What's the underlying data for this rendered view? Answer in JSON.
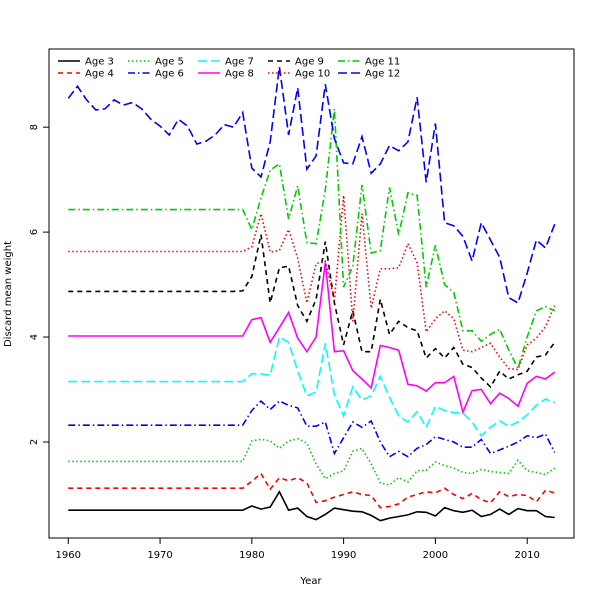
{
  "chart_data": {
    "type": "line",
    "title": "",
    "xlabel": "Year",
    "ylabel": "Discard mean weight",
    "xlim": [
      1957.9,
      2015.1
    ],
    "ylim": [
      0.17,
      9.49
    ],
    "xticks": [
      1960,
      1970,
      1980,
      1990,
      2000,
      2010
    ],
    "yticks": [
      2,
      4,
      6,
      8
    ],
    "grid": false,
    "legend_position": "top-left",
    "x_start": 1960,
    "x_end": 2013,
    "series": [
      {
        "name": "Age 3",
        "color": "#000000",
        "dash": "solid",
        "values": [
          0.7,
          0.7,
          0.7,
          0.7,
          0.7,
          0.7,
          0.7,
          0.7,
          0.7,
          0.7,
          0.7,
          0.7,
          0.7,
          0.7,
          0.7,
          0.7,
          0.7,
          0.7,
          0.7,
          0.7,
          0.78,
          0.72,
          0.76,
          1.05,
          0.7,
          0.74,
          0.58,
          0.52,
          0.62,
          0.74,
          0.71,
          0.68,
          0.67,
          0.6,
          0.5,
          0.55,
          0.58,
          0.61,
          0.67,
          0.66,
          0.59,
          0.75,
          0.69,
          0.66,
          0.7,
          0.58,
          0.62,
          0.72,
          0.62,
          0.73,
          0.69,
          0.69,
          0.58,
          0.56
        ]
      },
      {
        "name": "Age 4",
        "color": "#ff0000",
        "dash": "dashed",
        "values": [
          1.12,
          1.12,
          1.12,
          1.12,
          1.12,
          1.12,
          1.12,
          1.12,
          1.12,
          1.12,
          1.12,
          1.12,
          1.12,
          1.12,
          1.12,
          1.12,
          1.12,
          1.12,
          1.12,
          1.12,
          1.25,
          1.4,
          1.1,
          1.32,
          1.26,
          1.32,
          1.22,
          0.85,
          0.88,
          0.95,
          1.0,
          1.05,
          1.0,
          0.98,
          0.75,
          0.77,
          0.82,
          0.95,
          1.0,
          1.05,
          1.03,
          1.12,
          1.0,
          0.92,
          1.02,
          0.9,
          0.84,
          1.05,
          0.96,
          1.0,
          0.98,
          0.86,
          1.08,
          1.03
        ]
      },
      {
        "name": "Age 5",
        "color": "#00cc00",
        "dash": "dotted",
        "values": [
          1.63,
          1.63,
          1.63,
          1.63,
          1.63,
          1.63,
          1.63,
          1.63,
          1.63,
          1.63,
          1.63,
          1.63,
          1.63,
          1.63,
          1.63,
          1.63,
          1.63,
          1.63,
          1.63,
          1.63,
          2.02,
          2.05,
          2.02,
          1.88,
          2.02,
          2.06,
          1.98,
          1.58,
          1.3,
          1.4,
          1.45,
          1.82,
          1.88,
          1.58,
          1.22,
          1.18,
          1.32,
          1.24,
          1.45,
          1.46,
          1.62,
          1.55,
          1.5,
          1.42,
          1.4,
          1.48,
          1.44,
          1.42,
          1.4,
          1.65,
          1.45,
          1.42,
          1.38,
          1.5
        ]
      },
      {
        "name": "Age 6",
        "color": "#0000ff",
        "dash": "dashdot",
        "values": [
          2.32,
          2.32,
          2.32,
          2.32,
          2.32,
          2.32,
          2.32,
          2.32,
          2.32,
          2.32,
          2.32,
          2.32,
          2.32,
          2.32,
          2.32,
          2.32,
          2.32,
          2.32,
          2.32,
          2.32,
          2.6,
          2.78,
          2.62,
          2.78,
          2.7,
          2.65,
          2.3,
          2.3,
          2.38,
          1.78,
          2.08,
          2.38,
          2.28,
          2.4,
          2.0,
          1.72,
          1.82,
          1.72,
          1.88,
          1.95,
          2.1,
          2.05,
          2.0,
          1.9,
          1.9,
          2.05,
          1.78,
          1.85,
          1.92,
          2.0,
          2.12,
          2.08,
          2.15,
          1.8
        ]
      },
      {
        "name": "Age 7",
        "color": "#00ffff",
        "dash": "longdash",
        "values": [
          3.15,
          3.15,
          3.15,
          3.15,
          3.15,
          3.15,
          3.15,
          3.15,
          3.15,
          3.15,
          3.15,
          3.15,
          3.15,
          3.15,
          3.15,
          3.15,
          3.15,
          3.15,
          3.15,
          3.15,
          3.3,
          3.3,
          3.27,
          4.0,
          3.9,
          3.35,
          2.88,
          2.95,
          3.88,
          2.9,
          2.5,
          3.05,
          2.8,
          2.88,
          3.25,
          2.85,
          2.5,
          2.38,
          2.58,
          2.28,
          2.68,
          2.6,
          2.56,
          2.55,
          2.38,
          2.12,
          2.28,
          2.4,
          2.3,
          2.38,
          2.52,
          2.7,
          2.82,
          2.75
        ]
      },
      {
        "name": "Age 8",
        "color": "#ff00ff",
        "dash": "solid",
        "values": [
          4.02,
          4.02,
          4.02,
          4.02,
          4.02,
          4.02,
          4.02,
          4.02,
          4.02,
          4.02,
          4.02,
          4.02,
          4.02,
          4.02,
          4.02,
          4.02,
          4.02,
          4.02,
          4.02,
          4.02,
          4.33,
          4.37,
          3.9,
          4.18,
          4.47,
          3.98,
          3.72,
          4.0,
          5.42,
          3.72,
          3.74,
          3.36,
          3.2,
          3.03,
          3.84,
          3.8,
          3.75,
          3.1,
          3.07,
          2.97,
          3.13,
          3.13,
          3.25,
          2.57,
          2.98,
          3.0,
          2.73,
          2.93,
          2.83,
          2.68,
          3.12,
          3.25,
          3.2,
          3.33
        ]
      },
      {
        "name": "Age 9",
        "color": "#000000",
        "dash": "dashed",
        "values": [
          4.87,
          4.87,
          4.87,
          4.87,
          4.87,
          4.87,
          4.87,
          4.87,
          4.87,
          4.87,
          4.87,
          4.87,
          4.87,
          4.87,
          4.87,
          4.87,
          4.87,
          4.87,
          4.87,
          4.88,
          5.15,
          5.95,
          4.65,
          5.32,
          5.35,
          4.6,
          4.3,
          4.72,
          5.82,
          4.65,
          3.85,
          4.5,
          3.72,
          3.72,
          4.72,
          4.05,
          4.3,
          4.18,
          4.12,
          3.6,
          3.78,
          3.6,
          3.8,
          3.48,
          3.42,
          3.22,
          3.05,
          3.35,
          3.2,
          3.28,
          3.35,
          3.62,
          3.66,
          3.9
        ]
      },
      {
        "name": "Age 10",
        "color": "#ff0000",
        "dash": "dotted",
        "values": [
          5.63,
          5.63,
          5.63,
          5.63,
          5.63,
          5.63,
          5.63,
          5.63,
          5.63,
          5.63,
          5.63,
          5.63,
          5.63,
          5.63,
          5.63,
          5.63,
          5.63,
          5.63,
          5.63,
          5.63,
          5.72,
          6.35,
          5.62,
          5.65,
          6.05,
          5.5,
          4.65,
          5.4,
          5.45,
          4.7,
          6.7,
          4.3,
          6.35,
          4.55,
          5.3,
          5.3,
          5.32,
          5.78,
          5.42,
          4.1,
          4.35,
          4.5,
          4.35,
          3.75,
          3.72,
          3.8,
          3.88,
          3.62,
          3.4,
          3.38,
          3.85,
          3.98,
          4.2,
          4.6
        ]
      },
      {
        "name": "Age 11",
        "color": "#00cc00",
        "dash": "dashdot",
        "values": [
          6.43,
          6.43,
          6.43,
          6.43,
          6.43,
          6.43,
          6.43,
          6.43,
          6.43,
          6.43,
          6.43,
          6.43,
          6.43,
          6.43,
          6.43,
          6.43,
          6.43,
          6.43,
          6.43,
          6.43,
          6.05,
          6.65,
          7.18,
          7.3,
          6.25,
          6.88,
          5.8,
          5.78,
          6.8,
          8.35,
          4.95,
          5.35,
          6.9,
          5.6,
          5.65,
          6.85,
          5.95,
          6.75,
          6.7,
          4.95,
          5.75,
          5.0,
          4.85,
          4.12,
          4.12,
          3.92,
          4.05,
          4.15,
          3.75,
          3.4,
          4.0,
          4.5,
          4.58,
          4.5
        ]
      },
      {
        "name": "Age 12",
        "color": "#0000ff",
        "dash": "longdash",
        "values": [
          8.55,
          8.78,
          8.52,
          8.33,
          8.35,
          8.52,
          8.42,
          8.47,
          8.35,
          8.15,
          8.02,
          7.85,
          8.15,
          8.02,
          7.68,
          7.73,
          7.85,
          8.05,
          8.0,
          8.28,
          7.22,
          7.05,
          7.72,
          9.15,
          7.85,
          8.75,
          7.2,
          7.45,
          8.82,
          7.78,
          7.32,
          7.3,
          7.82,
          7.12,
          7.3,
          7.65,
          7.55,
          7.72,
          8.57,
          6.95,
          8.07,
          6.18,
          6.12,
          5.92,
          5.45,
          6.18,
          5.85,
          5.52,
          4.75,
          4.65,
          5.22,
          5.85,
          5.7,
          6.15
        ]
      }
    ]
  }
}
